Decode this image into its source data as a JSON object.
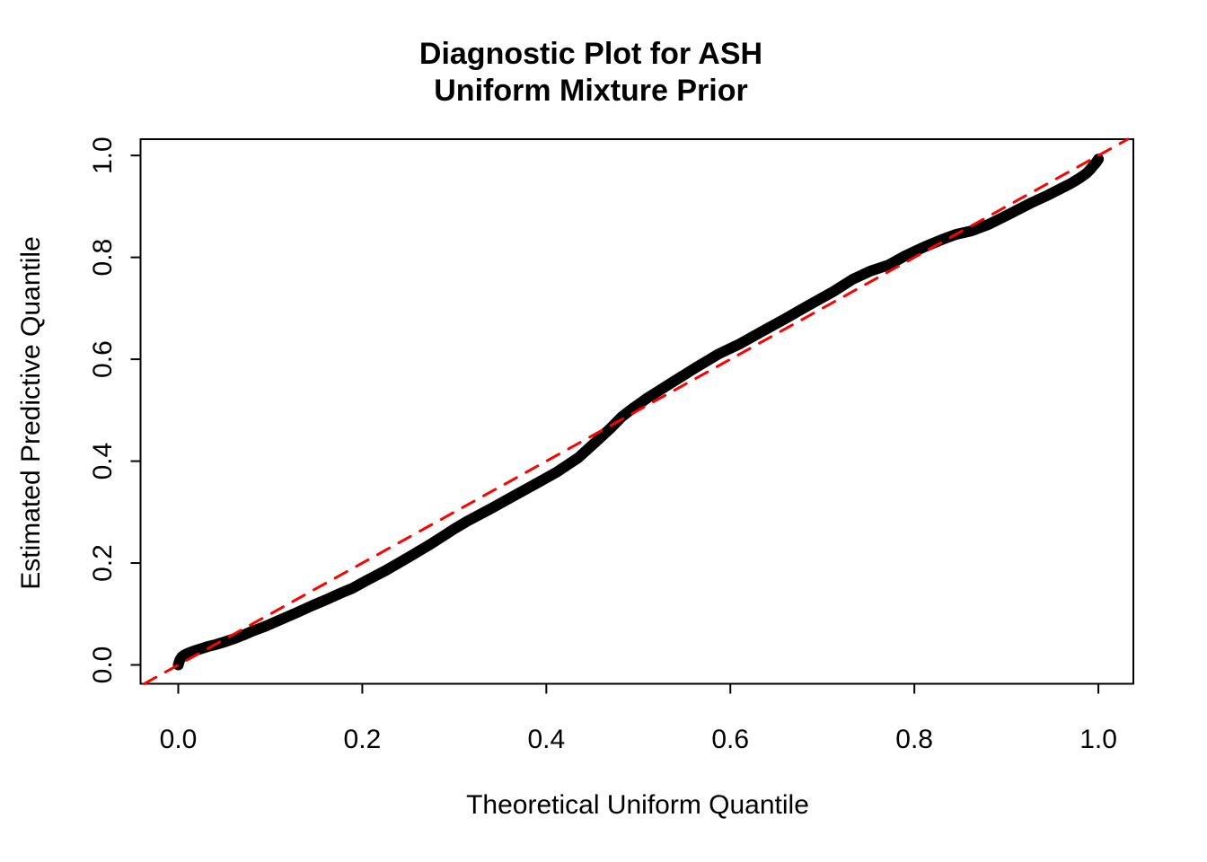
{
  "figure": {
    "background": "#FFFFFF"
  },
  "chart_data": {
    "type": "line",
    "title_lines": [
      "Diagnostic Plot for ASH",
      "Uniform Mixture Prior"
    ],
    "xlabel": "Theoretical Uniform Quantile",
    "ylabel": "Estimated Predictive Quantile",
    "x_range": [
      -0.041,
      1.038
    ],
    "y_range": [
      -0.037,
      1.032
    ],
    "grid": false,
    "legend": "none",
    "x_ticks": {
      "values": [
        0.0,
        0.2,
        0.4,
        0.6,
        0.8,
        1.0
      ],
      "labels": [
        "0.0",
        "0.2",
        "0.4",
        "0.6",
        "0.8",
        "1.0"
      ]
    },
    "y_ticks": {
      "values": [
        0.0,
        0.2,
        0.4,
        0.6,
        0.8,
        1.0
      ],
      "labels": [
        "0.0",
        "0.2",
        "0.4",
        "0.6",
        "0.8",
        "1.0"
      ]
    },
    "colors": {
      "curve": "#000000",
      "reference": "#FF0000",
      "text": "#000000",
      "background": "#FFFFFF"
    },
    "series": [
      {
        "name": "estimated-predictive-quantile-curve",
        "color": "#000000",
        "stroke_width": 12,
        "dash": null,
        "points": [
          [
            0.0,
            0.0
          ],
          [
            0.001,
            0.006
          ],
          [
            0.002,
            0.011
          ],
          [
            0.004,
            0.016
          ],
          [
            0.007,
            0.02
          ],
          [
            0.012,
            0.024
          ],
          [
            0.018,
            0.028
          ],
          [
            0.025,
            0.032
          ],
          [
            0.032,
            0.036
          ],
          [
            0.041,
            0.04
          ],
          [
            0.05,
            0.045
          ],
          [
            0.06,
            0.051
          ],
          [
            0.07,
            0.058
          ],
          [
            0.08,
            0.066
          ],
          [
            0.095,
            0.076
          ],
          [
            0.11,
            0.088
          ],
          [
            0.128,
            0.102
          ],
          [
            0.145,
            0.116
          ],
          [
            0.162,
            0.129
          ],
          [
            0.178,
            0.142
          ],
          [
            0.19,
            0.151
          ],
          [
            0.205,
            0.166
          ],
          [
            0.226,
            0.186
          ],
          [
            0.25,
            0.211
          ],
          [
            0.275,
            0.238
          ],
          [
            0.3,
            0.267
          ],
          [
            0.314,
            0.282
          ],
          [
            0.34,
            0.307
          ],
          [
            0.363,
            0.33
          ],
          [
            0.386,
            0.353
          ],
          [
            0.411,
            0.378
          ],
          [
            0.435,
            0.407
          ],
          [
            0.455,
            0.44
          ],
          [
            0.47,
            0.465
          ],
          [
            0.482,
            0.487
          ],
          [
            0.492,
            0.501
          ],
          [
            0.51,
            0.524
          ],
          [
            0.538,
            0.556
          ],
          [
            0.562,
            0.583
          ],
          [
            0.587,
            0.61
          ],
          [
            0.61,
            0.63
          ],
          [
            0.636,
            0.656
          ],
          [
            0.66,
            0.68
          ],
          [
            0.686,
            0.707
          ],
          [
            0.713,
            0.734
          ],
          [
            0.733,
            0.757
          ],
          [
            0.752,
            0.773
          ],
          [
            0.772,
            0.785
          ],
          [
            0.79,
            0.803
          ],
          [
            0.81,
            0.82
          ],
          [
            0.83,
            0.835
          ],
          [
            0.845,
            0.845
          ],
          [
            0.862,
            0.852
          ],
          [
            0.88,
            0.864
          ],
          [
            0.9,
            0.882
          ],
          [
            0.928,
            0.908
          ],
          [
            0.945,
            0.922
          ],
          [
            0.958,
            0.934
          ],
          [
            0.97,
            0.945
          ],
          [
            0.98,
            0.956
          ],
          [
            0.987,
            0.965
          ],
          [
            0.991,
            0.972
          ],
          [
            0.994,
            0.979
          ],
          [
            0.997,
            0.985
          ],
          [
            0.999,
            0.99
          ],
          [
            1.0,
            0.993
          ]
        ]
      },
      {
        "name": "reference-diagonal",
        "color": "#FF0000",
        "stroke_width": 3,
        "dash": [
          15,
          12
        ],
        "points": [
          [
            -0.037,
            -0.037
          ],
          [
            1.032,
            1.032
          ]
        ]
      }
    ]
  }
}
